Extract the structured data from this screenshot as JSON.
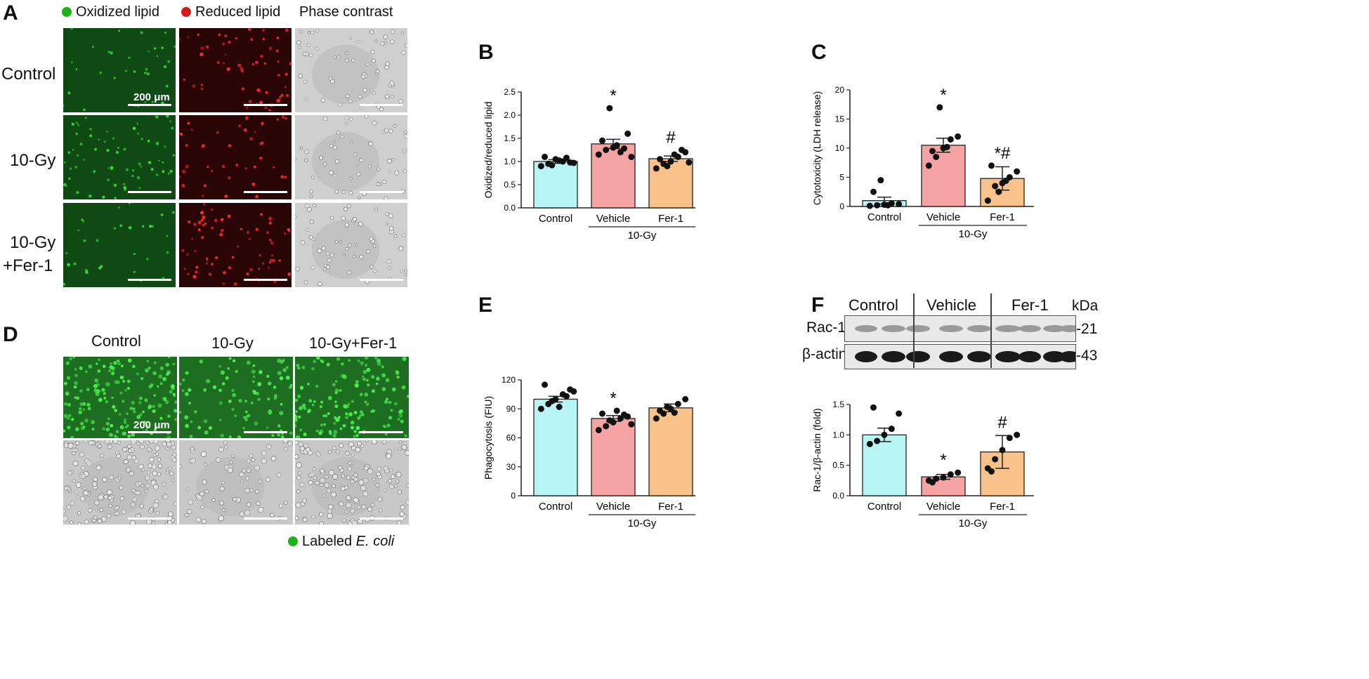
{
  "panels": {
    "A": {
      "letter": "A",
      "legend": [
        {
          "label": "Oxidized lipid",
          "color": "#1db31d"
        },
        {
          "label": "Reduced lipid",
          "color": "#d41a1a"
        },
        {
          "label": "Phase contrast",
          "color": ""
        }
      ],
      "rows": [
        "Control",
        "10-Gy",
        "10-Gy\n+Fer-1"
      ],
      "row1": "Control",
      "row2": "10-Gy",
      "row3a": "10-Gy",
      "row3b": "+Fer-1",
      "scale_label": "200 μm"
    },
    "D": {
      "letter": "D",
      "columns": [
        "Control",
        "10-Gy",
        "10-Gy+Fer-1"
      ],
      "scale_label": "200 μm",
      "legend_prefix": "Labeled ",
      "legend_italic": "E. coli",
      "legend_color": "#1db31d"
    },
    "F": {
      "letter": "F",
      "groups": [
        "Control",
        "Vehicle",
        "Fer-1"
      ],
      "kda": "kDa",
      "rac_label": "Rac-1-",
      "actin_label": "β-actin-",
      "rac_kda": "-21",
      "actin_kda": "-43"
    }
  },
  "chart_data": [
    {
      "id": "B",
      "letter": "B",
      "type": "bar",
      "categories": [
        "Control",
        "Vehicle",
        "Fer-1"
      ],
      "group_label": "10-Gy",
      "values": [
        1.0,
        1.38,
        1.06
      ],
      "errors": [
        0.04,
        0.1,
        0.06
      ],
      "points": [
        [
          0.9,
          0.95,
          1.05,
          1.0,
          0.98,
          1.1,
          0.92,
          1.02,
          1.08,
          0.97
        ],
        [
          1.15,
          1.25,
          1.3,
          1.2,
          1.6,
          1.45,
          2.15,
          1.35,
          1.28,
          1.1
        ],
        [
          0.85,
          0.95,
          1.0,
          1.1,
          1.2,
          1.05,
          0.9,
          1.15,
          1.25,
          0.98
        ]
      ],
      "colors": [
        "#b8f5f5",
        "#f5a3a3",
        "#f9c28a"
      ],
      "ylabel": "Oxidized/reduced lipid",
      "ylim": [
        0,
        2.5
      ],
      "yticks": [
        "0.0",
        "0.5",
        "1.0",
        "1.5",
        "2.0",
        "2.5"
      ],
      "marks": [
        "",
        "*",
        "#"
      ]
    },
    {
      "id": "C",
      "letter": "C",
      "type": "bar",
      "categories": [
        "Control",
        "Vehicle",
        "Fer-1"
      ],
      "group_label": "10-Gy",
      "values": [
        1.0,
        10.5,
        4.8
      ],
      "errors": [
        0.6,
        1.2,
        2.0
      ],
      "points": [
        [
          0.1,
          0.2,
          0.3,
          0.5,
          0.4,
          2.5,
          4.5,
          0.2
        ],
        [
          7.0,
          8.5,
          10.0,
          11.5,
          12.0,
          9.5,
          17.0,
          10.2
        ],
        [
          1.0,
          3.5,
          4.0,
          5.0,
          6.0,
          7.0,
          2.5,
          4.4
        ]
      ],
      "colors": [
        "#b8f5f5",
        "#f5a3a3",
        "#f9c28a"
      ],
      "ylabel": "Cytotoxicity (LDH release)",
      "ylim": [
        0,
        20
      ],
      "yticks": [
        "0",
        "5",
        "10",
        "15",
        "20"
      ],
      "marks": [
        "",
        "*",
        "*#"
      ]
    },
    {
      "id": "E",
      "letter": "E",
      "type": "bar",
      "categories": [
        "Control",
        "Vehicle",
        "Fer-1"
      ],
      "group_label": "10-Gy",
      "values": [
        100,
        80,
        91
      ],
      "errors": [
        3,
        3,
        4
      ],
      "points": [
        [
          90,
          95,
          100,
          105,
          110,
          115,
          98,
          92,
          103,
          108
        ],
        [
          68,
          72,
          76,
          80,
          82,
          85,
          78,
          88,
          84,
          74
        ],
        [
          80,
          85,
          90,
          95,
          100,
          88,
          92,
          86
        ]
      ],
      "colors": [
        "#b8f5f5",
        "#f5a3a3",
        "#f9c28a"
      ],
      "ylabel": "Phagocytosis (FIU)",
      "ylim": [
        0,
        120
      ],
      "yticks": [
        "0",
        "30",
        "60",
        "90",
        "120"
      ],
      "marks": [
        "",
        "*",
        ""
      ]
    },
    {
      "id": "F",
      "letter": "",
      "type": "bar",
      "categories": [
        "Control",
        "Vehicle",
        "Fer-1"
      ],
      "group_label": "10-Gy",
      "values": [
        1.0,
        0.31,
        0.72
      ],
      "errors": [
        0.11,
        0.04,
        0.27
      ],
      "points": [
        [
          0.85,
          0.9,
          1.0,
          1.1,
          1.35,
          1.45
        ],
        [
          0.25,
          0.28,
          0.3,
          0.35,
          0.38,
          0.22
        ],
        [
          0.45,
          0.6,
          0.75,
          0.95,
          1.0,
          0.4
        ]
      ],
      "colors": [
        "#b8f5f5",
        "#f5a3a3",
        "#f9c28a"
      ],
      "ylabel": "Rac-1/β-actin (fold)",
      "ylim": [
        0,
        1.5
      ],
      "yticks": [
        "0.0",
        "0.5",
        "1.0",
        "1.5"
      ],
      "marks": [
        "",
        "*",
        "#"
      ]
    }
  ]
}
